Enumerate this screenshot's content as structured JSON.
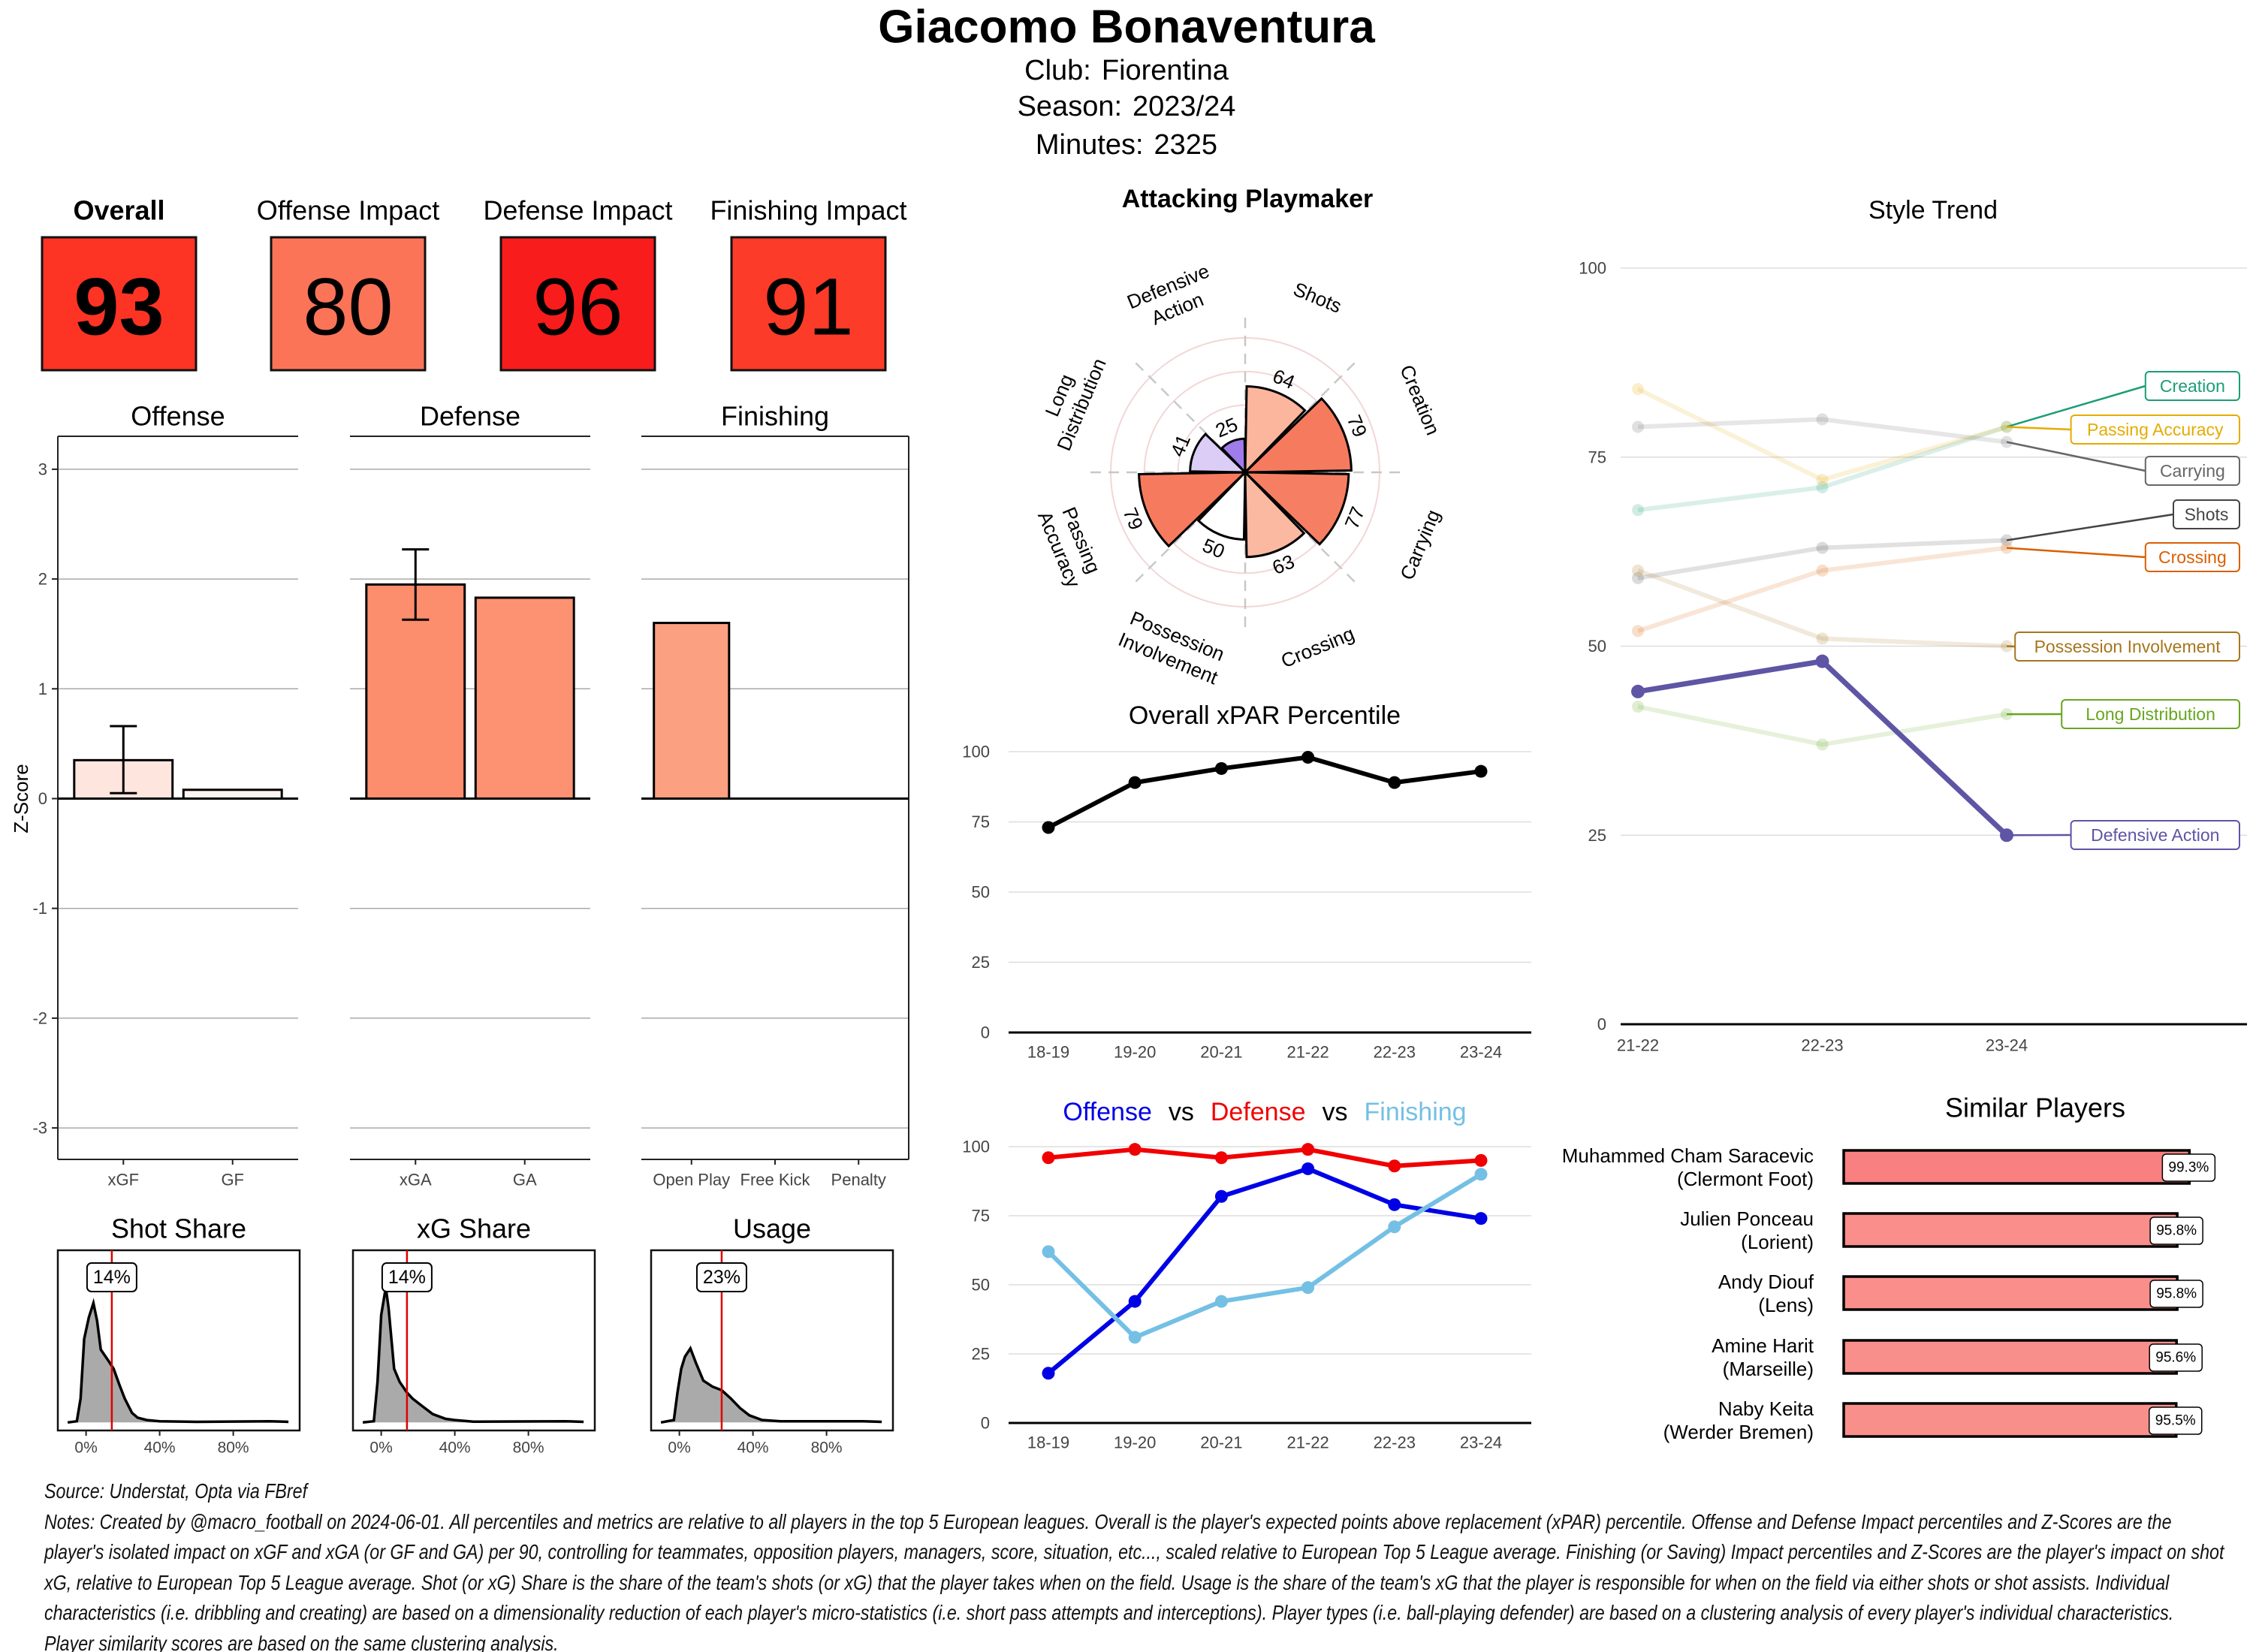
{
  "header": {
    "title": "Giacomo Bonaventura",
    "club_label": "Club:",
    "club": "Fiorentina",
    "season_label": "Season:",
    "season": "2023/24",
    "minutes_label": "Minutes:",
    "minutes": "2325"
  },
  "tiles": [
    {
      "label": "Overall",
      "value": 93,
      "color": "#FD3324"
    },
    {
      "label": "Offense Impact",
      "value": 80,
      "color": "#FB7458"
    },
    {
      "label": "Defense Impact",
      "value": 96,
      "color": "#F81C1C"
    },
    {
      "label": "Finishing Impact",
      "value": 91,
      "color": "#FC3B29"
    }
  ],
  "chart_data": [
    {
      "type": "bar",
      "ylabel": "Z-Score",
      "ylim": [
        -3.3,
        3.3
      ],
      "yticks": [
        -3,
        -2,
        -1,
        0,
        1,
        2,
        3
      ],
      "grid": true,
      "panels": [
        {
          "title": "Offense",
          "categories": [
            "xGF",
            "GF"
          ],
          "values": [
            0.35,
            0.08
          ],
          "error": [
            [
              0.05,
              0.66
            ],
            null
          ],
          "colors": [
            "#FEE5DE",
            "#FFF5F0"
          ]
        },
        {
          "title": "Defense",
          "categories": [
            "xGA",
            "GA"
          ],
          "values": [
            1.95,
            1.83
          ],
          "error": [
            [
              1.63,
              2.27
            ],
            null
          ],
          "colors": [
            "#FC8D6D",
            "#FC9272"
          ]
        },
        {
          "title": "Finishing",
          "categories": [
            "Open Play",
            "Free Kick",
            "Penalty"
          ],
          "values": [
            1.6,
            0,
            0
          ],
          "error": [
            null,
            null,
            null
          ],
          "colors": [
            "#FCA082",
            "#FFFFFF",
            "#FFFFFF"
          ]
        }
      ]
    },
    {
      "type": "area",
      "xlim": [
        -15,
        120
      ],
      "xticks": [
        0,
        40,
        80
      ],
      "xtick_labels": [
        "0%",
        "40%",
        "80%"
      ],
      "marker_color": "#E00000",
      "panels": [
        {
          "title": "Shot Share",
          "marker": 14,
          "marker_label": "14%",
          "curve": [
            [
              -10,
              0
            ],
            [
              -5,
              0.01
            ],
            [
              -3,
              0.2
            ],
            [
              -1,
              0.7
            ],
            [
              1.5,
              0.88
            ],
            [
              4,
              1
            ],
            [
              6,
              0.85
            ],
            [
              8,
              0.61
            ],
            [
              12,
              0.52
            ],
            [
              15,
              0.45
            ],
            [
              18,
              0.32
            ],
            [
              21,
              0.2
            ],
            [
              25,
              0.08
            ],
            [
              28,
              0.04
            ],
            [
              33,
              0.02
            ],
            [
              40,
              0.01
            ],
            [
              60,
              0.005
            ],
            [
              100,
              0.01
            ],
            [
              110,
              0.005
            ]
          ]
        },
        {
          "title": "xG Share",
          "marker": 14,
          "marker_label": "14%",
          "curve": [
            [
              -10,
              0
            ],
            [
              -4,
              0.01
            ],
            [
              -2,
              0.34
            ],
            [
              0,
              0.9
            ],
            [
              2.5,
              1.13
            ],
            [
              4,
              0.96
            ],
            [
              7,
              0.45
            ],
            [
              10,
              0.34
            ],
            [
              14,
              0.25
            ],
            [
              17,
              0.2
            ],
            [
              22,
              0.14
            ],
            [
              28,
              0.07
            ],
            [
              35,
              0.03
            ],
            [
              40,
              0.02
            ],
            [
              50,
              0.006
            ],
            [
              100,
              0.01
            ],
            [
              110,
              0.005
            ]
          ]
        },
        {
          "title": "Usage",
          "marker": 23,
          "marker_label": "23%",
          "curve": [
            [
              -10,
              0
            ],
            [
              -3,
              0.02
            ],
            [
              -1,
              0.25
            ],
            [
              1,
              0.45
            ],
            [
              3,
              0.55
            ],
            [
              6,
              0.62
            ],
            [
              9,
              0.5
            ],
            [
              13,
              0.35
            ],
            [
              18,
              0.3
            ],
            [
              23,
              0.27
            ],
            [
              28,
              0.2
            ],
            [
              33,
              0.12
            ],
            [
              38,
              0.06
            ],
            [
              45,
              0.02
            ],
            [
              55,
              0.01
            ],
            [
              80,
              0.01
            ],
            [
              100,
              0.01
            ],
            [
              110,
              0.005
            ]
          ]
        }
      ]
    },
    {
      "type": "bar",
      "subtype": "polar",
      "title": "Attacking Playmaker",
      "rlim": [
        0,
        100
      ],
      "categories": [
        [
          "Shots"
        ],
        [
          "Creation"
        ],
        [
          "Carrying"
        ],
        [
          "Crossing"
        ],
        [
          "Possession",
          "Involvement"
        ],
        [
          "Passing",
          "Accuracy"
        ],
        [
          "Long",
          "Distribution"
        ],
        [
          "Defensive",
          "Action"
        ]
      ],
      "values": [
        64,
        79,
        77,
        63,
        50,
        79,
        41,
        25
      ],
      "colors": [
        "#FBB69D",
        "#F67B5E",
        "#F67F63",
        "#FBB9A1",
        "#FFFFFF",
        "#F67B5E",
        "#DCCDF7",
        "#9F7CEA"
      ]
    },
    {
      "type": "line",
      "title": "Overall xPAR Percentile",
      "categories": [
        "18-19",
        "19-20",
        "20-21",
        "21-22",
        "22-23",
        "23-24"
      ],
      "ylim": [
        0,
        100
      ],
      "yticks": [
        0,
        25,
        50,
        75,
        100
      ],
      "series": [
        {
          "values": [
            73,
            89,
            94,
            98,
            89,
            93
          ],
          "color": "#000000"
        }
      ]
    },
    {
      "type": "line",
      "title_sep": "vs",
      "categories": [
        "18-19",
        "19-20",
        "20-21",
        "21-22",
        "22-23",
        "23-24"
      ],
      "ylim": [
        0,
        100
      ],
      "yticks": [
        0,
        25,
        50,
        75,
        100
      ],
      "series": [
        {
          "name": "Offense",
          "values": [
            18,
            44,
            82,
            92,
            79,
            74
          ],
          "color": "#0000E6"
        },
        {
          "name": "Defense",
          "values": [
            96,
            99,
            96,
            99,
            93,
            95
          ],
          "color": "#F00000"
        },
        {
          "name": "Finishing",
          "values": [
            62,
            31,
            44,
            49,
            71,
            90
          ],
          "color": "#74C0E4"
        }
      ]
    },
    {
      "type": "line",
      "title": "Style Trend",
      "categories": [
        "21-22",
        "22-23",
        "23-24"
      ],
      "ylim": [
        0,
        100
      ],
      "yticks": [
        0,
        25,
        50,
        75,
        100
      ],
      "series": [
        {
          "name": "Creation",
          "values": [
            68,
            71,
            79
          ],
          "color": "#1B9E77"
        },
        {
          "name": "Passing Accuracy",
          "values": [
            84,
            72,
            79
          ],
          "color": "#E6AB02"
        },
        {
          "name": "Carrying",
          "values": [
            79,
            80,
            77
          ],
          "color": "#666666"
        },
        {
          "name": "Shots",
          "values": [
            59,
            63,
            64
          ],
          "color": "#444444"
        },
        {
          "name": "Crossing",
          "values": [
            52,
            60,
            63
          ],
          "color": "#D95F02"
        },
        {
          "name": "Possession Involvement",
          "values": [
            60,
            51,
            50
          ],
          "color": "#A6761D"
        },
        {
          "name": "Long Distribution",
          "values": [
            42,
            37,
            41
          ],
          "color": "#66A61E"
        },
        {
          "name": "Defensive Action",
          "values": [
            44,
            48,
            25
          ],
          "color": "#5E55A5",
          "highlighted": true
        }
      ]
    },
    {
      "type": "bar",
      "orientation": "horizontal",
      "title": "Similar Players",
      "xlim": [
        0,
        100
      ],
      "players": [
        {
          "name": "Muhammed Cham Saracevic",
          "club": "(Clermont Foot)",
          "value": 99.3,
          "label": "99.3%",
          "color": "#F88080"
        },
        {
          "name": "Julien Ponceau",
          "club": "(Lorient)",
          "value": 95.8,
          "label": "95.8%",
          "color": "#F98E8A"
        },
        {
          "name": "Andy Diouf",
          "club": "(Lens)",
          "value": 95.8,
          "label": "95.8%",
          "color": "#F98E8A"
        },
        {
          "name": "Amine Harit",
          "club": "(Marseille)",
          "value": 95.6,
          "label": "95.6%",
          "color": "#F98F8B"
        },
        {
          "name": "Naby Keita",
          "club": "(Werder Bremen)",
          "value": 95.5,
          "label": "95.5%",
          "color": "#F98F8B"
        }
      ]
    }
  ],
  "footer": {
    "source": "Source: Understat, Opta via FBref",
    "notes": "Notes: Created by @macro_football on 2024-06-01. All percentiles and metrics are relative to all players in the top 5 European leagues. Overall is the player's expected points above replacement (xPAR) percentile. Offense and Defense Impact percentiles and Z-Scores are the player's isolated impact on xGF and xGA (or GF and GA) per 90, controlling for teammates, opposition players, managers, score, situation, etc..., scaled relative to European Top 5 League average. Finishing (or Saving) Impact percentiles and Z-Scores are the player's impact on shot xG, relative to European Top 5 League average. Shot (or xG) Share is the share of the team's shots (or xG) that the player takes when on the field. Usage is the share of the team's xG that the player is responsible for when on the field via either shots or shot assists. Individual characteristics (i.e. dribbling and creating) are based on a dimensionality reduction of each player's micro-statistics (i.e. short pass attempts and interceptions). Player types (i.e. ball-playing defender) are based on a clustering analysis of every player's individual characteristics. Player similarity scores are based on the same clustering analysis."
  }
}
